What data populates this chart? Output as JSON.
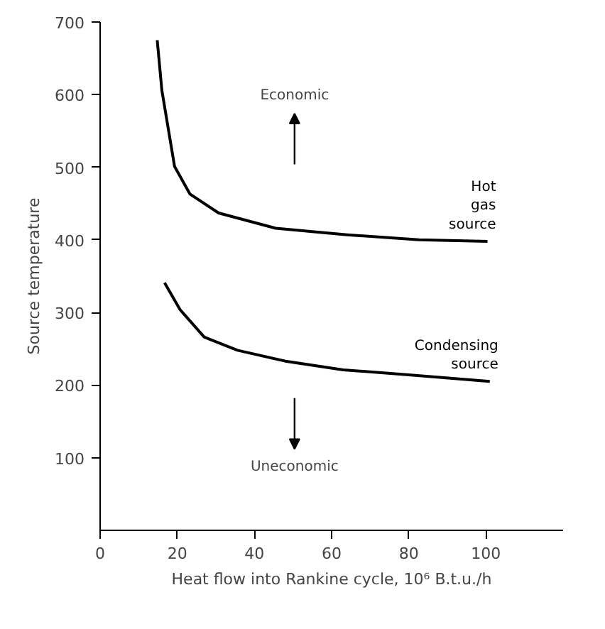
{
  "chart_data": {
    "type": "line",
    "xlabel": "Heat flow into Rankine cycle, 10⁶ B.t.u./h",
    "ylabel": "Source temperature",
    "xlim": [
      0,
      120
    ],
    "ylim": [
      0,
      700
    ],
    "xticks": [
      0,
      20,
      40,
      60,
      80,
      100
    ],
    "yticks": [
      100,
      200,
      300,
      400,
      500,
      600,
      700
    ],
    "grid": false,
    "marker": "none",
    "line_style": "solid",
    "series": [
      {
        "name": "Hot gas source",
        "color": "#000000",
        "x": [
          14.8,
          16,
          19.3,
          23.3,
          30.7,
          45.5,
          64,
          82.6,
          100.4
        ],
        "values": [
          675,
          606,
          501,
          463,
          437,
          416,
          407,
          400,
          398
        ]
      },
      {
        "name": "Condensing source",
        "color": "#000000",
        "x": [
          16.7,
          20.7,
          27,
          35.6,
          48,
          63,
          80,
          101
        ],
        "values": [
          341,
          304,
          266,
          248,
          233,
          221,
          214,
          205
        ]
      }
    ],
    "annotations": [
      "Economic",
      "Uneconomic"
    ]
  }
}
